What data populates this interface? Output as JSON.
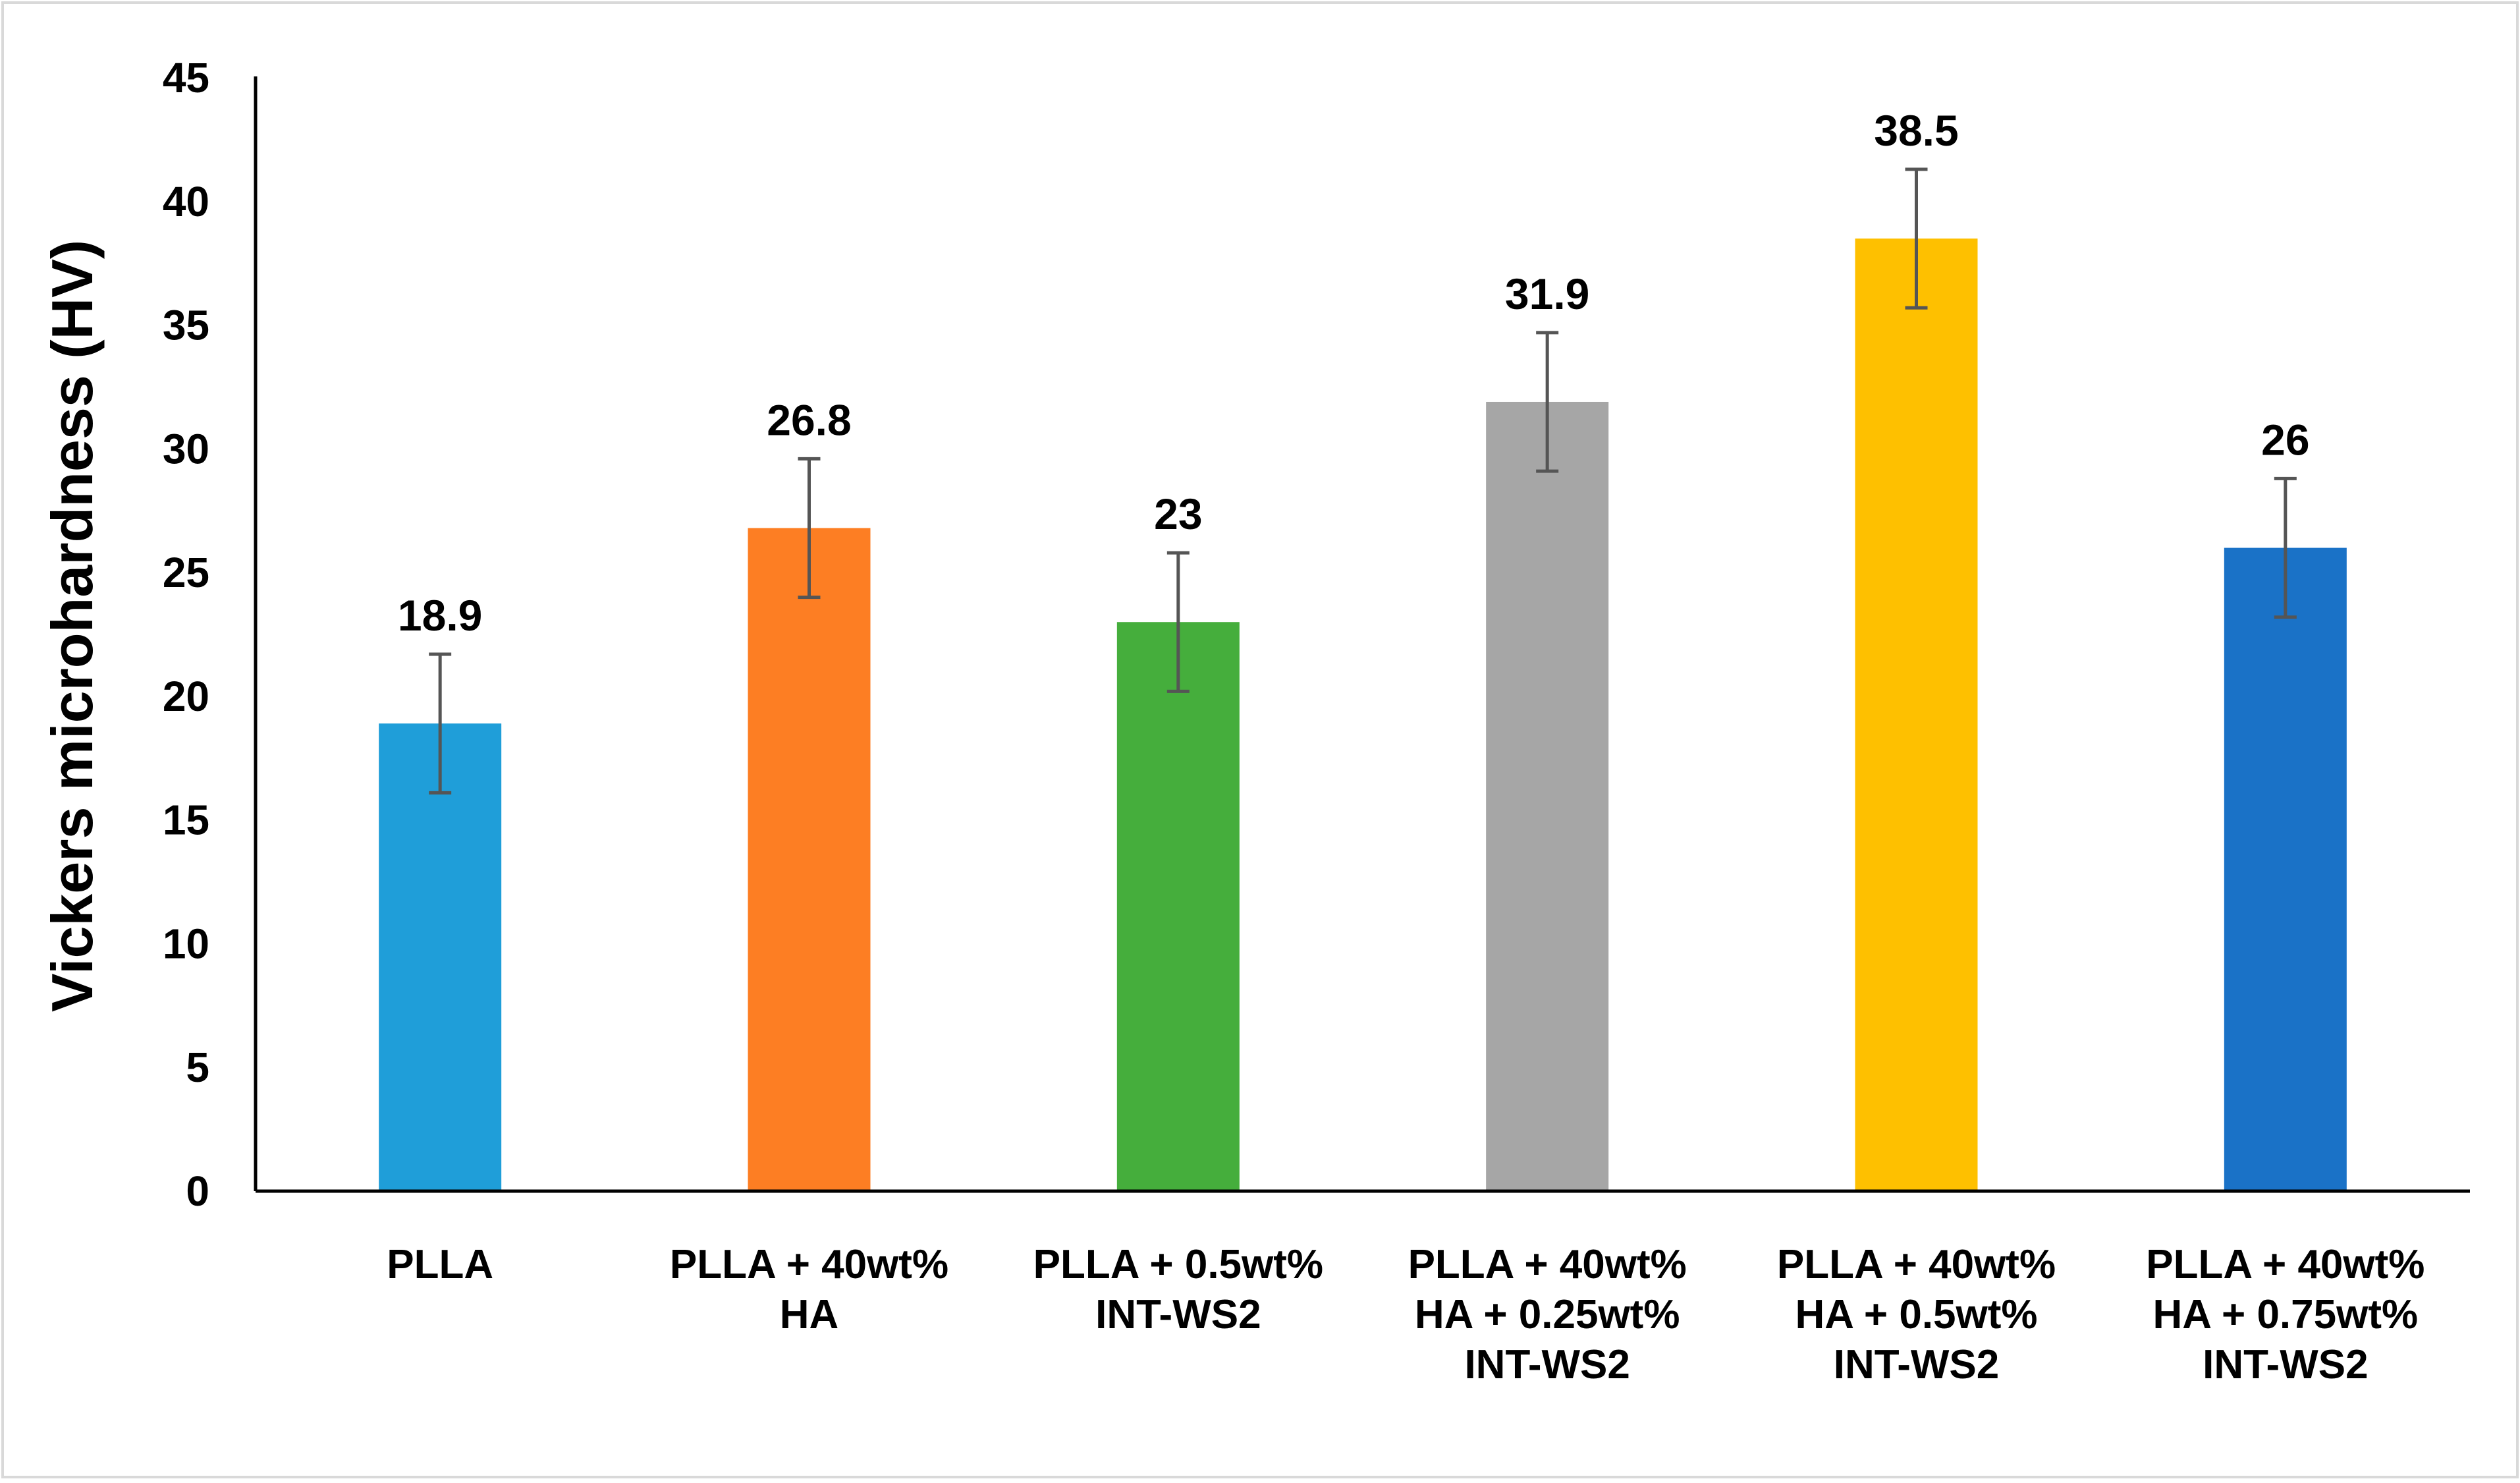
{
  "chart_data": {
    "type": "bar",
    "title": "",
    "xlabel": "",
    "ylabel": "Vickers microhardness (HV)",
    "ylim": [
      0,
      45
    ],
    "yticks": [
      0,
      5,
      10,
      15,
      20,
      25,
      30,
      35,
      40,
      45
    ],
    "grid": false,
    "legend": "none",
    "categories": [
      [
        "PLLA"
      ],
      [
        "PLLA + 40wt%",
        "HA"
      ],
      [
        "PLLA + 0.5wt%",
        "INT-WS2"
      ],
      [
        "PLLA + 40wt%",
        "HA + 0.25wt%",
        "INT-WS2"
      ],
      [
        "PLLA + 40wt%",
        "HA + 0.5wt%",
        "INT-WS2"
      ],
      [
        "PLLA + 40wt%",
        "HA + 0.75wt%",
        "INT-WS2"
      ]
    ],
    "values": [
      18.9,
      26.8,
      23,
      31.9,
      38.5,
      26
    ],
    "data_labels": [
      "18.9",
      "26.8",
      "23",
      "31.9",
      "38.5",
      "26"
    ],
    "error_bars": [
      2.8,
      2.8,
      2.8,
      2.8,
      2.8,
      2.8
    ],
    "colors": [
      "#1f9ed9",
      "#fd7e23",
      "#45ae3c",
      "#a6a6a6",
      "#fec000",
      "#1a72c7"
    ],
    "axis_color": "#000000",
    "error_bar_color": "#555555"
  }
}
